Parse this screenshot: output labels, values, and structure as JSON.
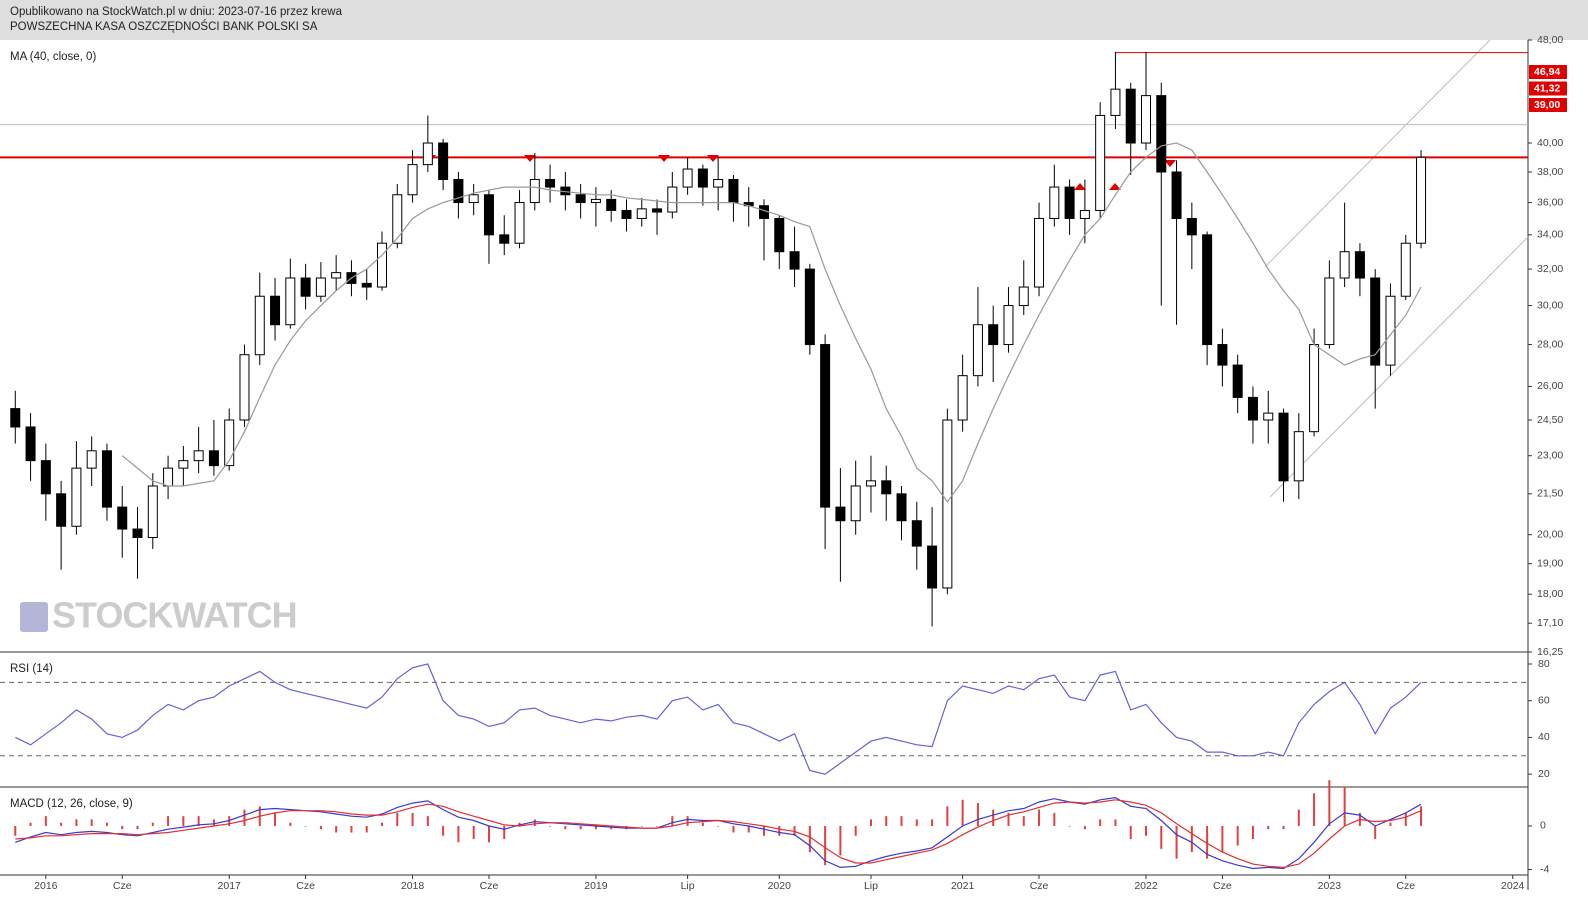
{
  "chart_data": {
    "type": "candlestick",
    "header": [
      "Opublikowano na StockWatch.pl w dniu: 2023-07-16 przez krewa",
      "POWSZECHNA KASA OSZCZĘDNOŚCI BANK POLSKI SA"
    ],
    "watermark": "STOCKWATCH",
    "x": [
      "2015-11",
      "2015-12",
      "2016-01",
      "2016-02",
      "2016-03",
      "2016-04",
      "2016-05",
      "2016-06",
      "2016-07",
      "2016-08",
      "2016-09",
      "2016-10",
      "2016-11",
      "2016-12",
      "2017-01",
      "2017-02",
      "2017-03",
      "2017-04",
      "2017-05",
      "2017-06",
      "2017-07",
      "2017-08",
      "2017-09",
      "2017-10",
      "2017-11",
      "2017-12",
      "2018-01",
      "2018-02",
      "2018-03",
      "2018-04",
      "2018-05",
      "2018-06",
      "2018-07",
      "2018-08",
      "2018-09",
      "2018-10",
      "2018-11",
      "2018-12",
      "2019-01",
      "2019-02",
      "2019-03",
      "2019-04",
      "2019-05",
      "2019-06",
      "2019-07",
      "2019-08",
      "2019-09",
      "2019-10",
      "2019-11",
      "2019-12",
      "2020-01",
      "2020-02",
      "2020-03",
      "2020-04",
      "2020-05",
      "2020-06",
      "2020-07",
      "2020-08",
      "2020-09",
      "2020-10",
      "2020-11",
      "2020-12",
      "2021-01",
      "2021-02",
      "2021-03",
      "2021-04",
      "2021-05",
      "2021-06",
      "2021-07",
      "2021-08",
      "2021-09",
      "2021-10",
      "2021-11",
      "2021-12",
      "2022-01",
      "2022-02",
      "2022-03",
      "2022-04",
      "2022-05",
      "2022-06",
      "2022-07",
      "2022-08",
      "2022-09",
      "2022-10",
      "2022-11",
      "2022-12",
      "2023-01",
      "2023-02",
      "2023-03",
      "2023-04",
      "2023-05",
      "2023-06",
      "2023-07"
    ],
    "open": [
      25.0,
      24.2,
      22.8,
      21.5,
      20.3,
      22.5,
      23.2,
      21.0,
      20.2,
      19.9,
      21.8,
      22.5,
      22.8,
      23.2,
      22.6,
      24.5,
      27.5,
      30.5,
      29.0,
      31.5,
      30.5,
      31.5,
      31.8,
      31.2,
      31.0,
      33.5,
      36.5,
      38.5,
      40.0,
      37.5,
      36.0,
      36.5,
      34.0,
      33.5,
      36.0,
      37.5,
      37.0,
      36.5,
      36.0,
      36.2,
      35.5,
      35.0,
      35.6,
      35.4,
      37.0,
      38.2,
      37.0,
      37.5,
      36.0,
      35.8,
      35.0,
      33.0,
      32.0,
      28.0,
      21.0,
      20.5,
      21.8,
      22.0,
      21.5,
      20.5,
      19.6,
      18.2,
      24.5,
      26.5,
      29.0,
      28.0,
      30.0,
      31.0,
      35.0,
      37.0,
      35.0,
      35.5,
      42.0,
      44.0,
      40.0,
      43.5,
      38.0,
      35.0,
      34.0,
      28.0,
      27.0,
      25.5,
      24.5,
      24.8,
      22.0,
      24.0,
      28.0,
      31.5,
      33.0,
      31.5,
      27.0,
      30.5,
      33.5
    ],
    "high": [
      25.8,
      24.8,
      23.5,
      22,
      23.6,
      23.8,
      23.5,
      21.8,
      21,
      22.3,
      23,
      23.4,
      24.2,
      24.5,
      25,
      28,
      31.8,
      31.5,
      32.6,
      32.3,
      32.4,
      32.8,
      32.5,
      32,
      34.2,
      37.2,
      39.5,
      42,
      40.3,
      38,
      37.2,
      36.8,
      35.2,
      36.8,
      39.3,
      38.5,
      38,
      37.2,
      37,
      36.8,
      36.2,
      36.3,
      36.2,
      38,
      39,
      38.5,
      39,
      37.8,
      37,
      36.2,
      35.2,
      34.5,
      32.3,
      28.5,
      22.5,
      22.8,
      23,
      22.6,
      21.8,
      21.2,
      21,
      25,
      27.5,
      31,
      30,
      31,
      32.5,
      36,
      38.5,
      37.5,
      37.5,
      43,
      47,
      44.5,
      47,
      44.5,
      38.8,
      36,
      34.2,
      28.8,
      27.5,
      26,
      25.8,
      25,
      24.8,
      28.8,
      32.5,
      36,
      33.5,
      32,
      31.2,
      34,
      39.5
    ],
    "low": [
      23.5,
      22,
      20.5,
      18.8,
      20,
      21.8,
      20.5,
      19.2,
      18.5,
      19.5,
      21.3,
      21.8,
      22.3,
      22.2,
      22.4,
      24.2,
      27,
      28.2,
      28.8,
      29.8,
      30.2,
      30.8,
      30.5,
      30.3,
      30.8,
      33.2,
      36,
      38,
      36.8,
      35,
      35.2,
      32.3,
      32.8,
      33.2,
      35.5,
      36,
      35.5,
      35,
      34.5,
      34.8,
      34.2,
      34.5,
      34,
      35,
      36.5,
      35.8,
      35.5,
      34.8,
      34.5,
      32.5,
      32,
      31,
      27.5,
      19.5,
      18.4,
      20,
      20.8,
      20.5,
      19.8,
      18.8,
      17,
      18,
      24,
      26,
      26.2,
      27.6,
      29.5,
      30.5,
      34.5,
      34,
      33.5,
      35,
      41,
      37.8,
      39.5,
      30,
      29,
      32,
      27,
      26,
      24.8,
      23.5,
      23.5,
      21.2,
      21.3,
      23.8,
      27.8,
      31,
      30.5,
      25,
      26.5,
      30.3,
      33.2
    ],
    "close": [
      24.2,
      22.8,
      21.5,
      20.3,
      22.5,
      23.2,
      21.0,
      20.2,
      19.9,
      21.8,
      22.5,
      22.8,
      23.2,
      22.6,
      24.5,
      27.5,
      30.5,
      29.0,
      31.5,
      30.5,
      31.5,
      31.8,
      31.2,
      31.0,
      33.5,
      36.5,
      38.5,
      40.0,
      37.5,
      36.0,
      36.5,
      34.0,
      33.5,
      36.0,
      37.5,
      37.0,
      36.5,
      36.0,
      36.2,
      35.5,
      35.0,
      35.6,
      35.4,
      37.0,
      38.2,
      37.0,
      37.5,
      36.0,
      35.8,
      35.0,
      33.0,
      32.0,
      28.0,
      21.0,
      20.5,
      21.8,
      22.0,
      21.5,
      20.5,
      19.6,
      18.2,
      24.5,
      26.5,
      29.0,
      28.0,
      30.0,
      31.0,
      35.0,
      37.0,
      35.0,
      35.5,
      42.0,
      44.0,
      40.0,
      43.5,
      38.0,
      35.0,
      34.0,
      28.0,
      27.0,
      25.5,
      24.5,
      24.8,
      22.0,
      24.0,
      28.0,
      31.5,
      33.0,
      31.5,
      27.0,
      30.5,
      33.5,
      39.0
    ],
    "log_scale": true,
    "ylim": [
      16.25,
      48
    ],
    "yticks": [
      {
        "value": 48,
        "label": "48,00"
      },
      {
        "value": 40,
        "label": "40,00"
      },
      {
        "value": 38,
        "label": "38,00"
      },
      {
        "value": 36,
        "label": "36,00"
      },
      {
        "value": 34,
        "label": "34,00"
      },
      {
        "value": 32,
        "label": "32,00"
      },
      {
        "value": 30,
        "label": "30,00"
      },
      {
        "value": 28,
        "label": "28,00"
      },
      {
        "value": 26,
        "label": "26,00"
      },
      {
        "value": 24.5,
        "label": "24,50"
      },
      {
        "value": 23,
        "label": "23,00"
      },
      {
        "value": 21.5,
        "label": "21,50"
      },
      {
        "value": 20,
        "label": "20,00"
      },
      {
        "value": 19,
        "label": "19,00"
      },
      {
        "value": 18,
        "label": "18,00"
      },
      {
        "value": 17.1,
        "label": "17,10"
      },
      {
        "value": 16.25,
        "label": "16,25"
      }
    ],
    "xlim": [
      "2015-10",
      "2024-02"
    ],
    "xticks": [
      {
        "value": "2016-01",
        "label": "2016"
      },
      {
        "value": "2016-06",
        "label": "Cze"
      },
      {
        "value": "2017-01",
        "label": "2017"
      },
      {
        "value": "2017-06",
        "label": "Cze"
      },
      {
        "value": "2018-01",
        "label": "2018"
      },
      {
        "value": "2018-06",
        "label": "Cze"
      },
      {
        "value": "2019-01",
        "label": "2019"
      },
      {
        "value": "2019-07",
        "label": "Lip"
      },
      {
        "value": "2020-01",
        "label": "2020"
      },
      {
        "value": "2020-07",
        "label": "Lip"
      },
      {
        "value": "2021-01",
        "label": "2021"
      },
      {
        "value": "2021-06",
        "label": "Cze"
      },
      {
        "value": "2022-01",
        "label": "2022"
      },
      {
        "value": "2022-06",
        "label": "Cze"
      },
      {
        "value": "2023-01",
        "label": "2023"
      },
      {
        "value": "2023-06",
        "label": "Cze"
      },
      {
        "value": "2024-01",
        "label": "2024"
      }
    ],
    "price_lines": [
      {
        "value": 46.94,
        "label": "46,94",
        "color": "#e00000",
        "from": "2021-11"
      },
      {
        "value": 41.32,
        "label": "41,32",
        "color": "#bbbbbb"
      },
      {
        "value": 39.0,
        "label": "39,00",
        "color": "#e00000"
      }
    ],
    "ma": {
      "name": "MA (40, close, 0)",
      "color": "#999999",
      "values": [
        null,
        null,
        null,
        null,
        null,
        null,
        null,
        23.0,
        22.5,
        22.0,
        21.8,
        21.8,
        21.9,
        22.0,
        22.8,
        24.0,
        25.5,
        27.0,
        28.2,
        29.2,
        30.0,
        30.8,
        31.5,
        32.0,
        32.8,
        33.8,
        35.0,
        35.6,
        36.0,
        36.3,
        36.6,
        36.8,
        37.0,
        37.0,
        37.0,
        36.8,
        36.7,
        36.6,
        36.5,
        36.5,
        36.3,
        36.2,
        36.1,
        36.0,
        36.0,
        36.0,
        36.0,
        36.0,
        35.8,
        35.5,
        35.2,
        34.8,
        34.5,
        32.0,
        30.0,
        28.3,
        26.8,
        25.0,
        23.8,
        22.5,
        22.0,
        21.2,
        22.0,
        23.5,
        25.0,
        26.5,
        28.0,
        29.5,
        31.0,
        32.5,
        34.0,
        35.0,
        36.5,
        38.0,
        39.0,
        39.8,
        40.0,
        39.5,
        38.0,
        36.5,
        35.0,
        33.5,
        32.0,
        30.8,
        29.8,
        28.0,
        27.5,
        27.0,
        27.3,
        27.5,
        28.5,
        29.5,
        31.0
      ]
    },
    "rsi": {
      "name": "RSI (14)",
      "color": "#6262d8",
      "ylim": [
        13,
        86
      ],
      "yticks": [
        20,
        40,
        60,
        80
      ],
      "levels": [
        70,
        30
      ],
      "values": [
        40,
        36,
        42,
        48,
        55,
        50,
        42,
        40,
        44,
        52,
        58,
        55,
        60,
        62,
        68,
        72,
        76,
        70,
        66,
        64,
        62,
        60,
        58,
        56,
        62,
        72,
        78,
        80,
        60,
        52,
        50,
        46,
        48,
        55,
        56,
        52,
        50,
        48,
        50,
        49,
        51,
        52,
        50,
        60,
        62,
        55,
        58,
        48,
        46,
        42,
        38,
        42,
        22,
        20,
        26,
        32,
        38,
        40,
        38,
        36,
        35,
        60,
        68,
        66,
        64,
        68,
        66,
        72,
        74,
        62,
        60,
        74,
        76,
        55,
        58,
        48,
        40,
        38,
        32,
        32,
        30,
        30,
        32,
        30,
        48,
        58,
        65,
        70,
        58,
        42,
        56,
        62,
        70
      ]
    },
    "macd": {
      "name": "MACD (12, 26, close, 9)",
      "ylim": [
        -4.5,
        3.3
      ],
      "yticks": [
        0,
        -4
      ],
      "hist_color": "#e04040",
      "series": [
        {
          "color": "#3a3ad0",
          "values": [
            -1.5,
            -1.0,
            -0.6,
            -0.8,
            -0.6,
            -0.5,
            -0.6,
            -0.8,
            -0.9,
            -0.6,
            -0.3,
            -0.1,
            0.1,
            0.2,
            0.5,
            1.0,
            1.5,
            1.6,
            1.5,
            1.4,
            1.3,
            1.1,
            0.9,
            0.8,
            1.1,
            1.7,
            2.1,
            2.3,
            1.5,
            0.8,
            0.5,
            0.0,
            -0.3,
            0.1,
            0.4,
            0.3,
            0.2,
            0.1,
            0.0,
            -0.1,
            -0.2,
            -0.2,
            -0.2,
            0.3,
            0.6,
            0.5,
            0.5,
            0.2,
            0.0,
            -0.3,
            -0.6,
            -0.8,
            -1.8,
            -3.2,
            -3.8,
            -3.7,
            -3.2,
            -2.8,
            -2.5,
            -2.3,
            -2.0,
            -1.0,
            0.0,
            0.6,
            1.0,
            1.4,
            1.6,
            2.2,
            2.5,
            2.2,
            2.0,
            2.4,
            2.6,
            1.8,
            1.6,
            0.5,
            -0.8,
            -1.5,
            -2.6,
            -3.2,
            -3.6,
            -3.9,
            -3.8,
            -3.9,
            -3.0,
            -1.5,
            0.2,
            1.2,
            1.0,
            0.0,
            0.6,
            1.2,
            2.0
          ]
        },
        {
          "color": "#e03030",
          "values": [
            -1.2,
            -1.1,
            -0.9,
            -0.9,
            -0.8,
            -0.7,
            -0.7,
            -0.7,
            -0.8,
            -0.7,
            -0.6,
            -0.4,
            -0.2,
            0.0,
            0.2,
            0.5,
            0.9,
            1.2,
            1.4,
            1.4,
            1.4,
            1.3,
            1.1,
            1.0,
            1.0,
            1.3,
            1.7,
            2.0,
            1.8,
            1.3,
            0.9,
            0.5,
            0.1,
            0.0,
            0.2,
            0.3,
            0.3,
            0.2,
            0.1,
            0.0,
            -0.1,
            -0.2,
            -0.2,
            0.0,
            0.3,
            0.4,
            0.5,
            0.4,
            0.2,
            0.0,
            -0.3,
            -0.5,
            -1.0,
            -2.0,
            -2.9,
            -3.4,
            -3.4,
            -3.1,
            -2.8,
            -2.5,
            -2.2,
            -1.6,
            -0.8,
            -0.1,
            0.5,
            1.0,
            1.3,
            1.7,
            2.1,
            2.2,
            2.1,
            2.2,
            2.4,
            2.2,
            1.9,
            1.2,
            0.2,
            -0.7,
            -1.6,
            -2.4,
            -3.0,
            -3.5,
            -3.7,
            -3.8,
            -3.5,
            -2.5,
            -1.2,
            0.0,
            0.6,
            0.4,
            0.5,
            0.8,
            1.4
          ]
        }
      ]
    }
  }
}
